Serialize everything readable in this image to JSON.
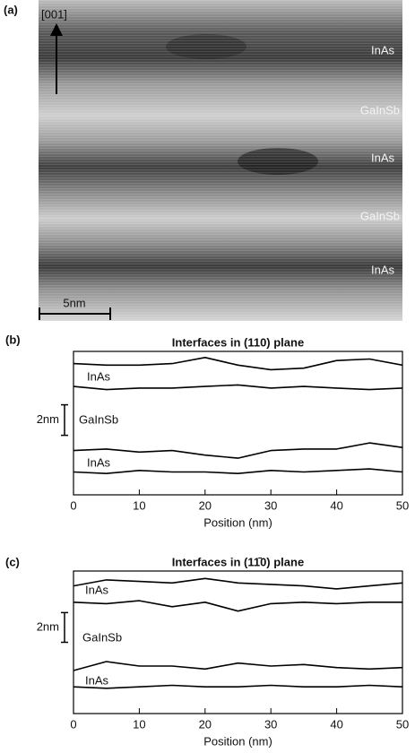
{
  "panel_a": {
    "label": "(a)",
    "direction": "[001]",
    "layers": [
      "InAs",
      "GaInSb",
      "InAs",
      "GaInSb",
      "InAs"
    ],
    "scale_bar": "5nm"
  },
  "chart_data": [
    {
      "type": "line",
      "panel_label": "(b)",
      "title": "Interfaces in (110) plane",
      "xlabel": "Position (nm)",
      "annotations": [
        "InAs",
        "GaInSb",
        "InAs"
      ],
      "scale_bar": {
        "value": 2,
        "label": "2nm"
      },
      "x": [
        0,
        5,
        10,
        15,
        20,
        25,
        30,
        35,
        40,
        45,
        50
      ],
      "series": [
        {
          "color": "#000000",
          "values": [
            8.6,
            8.5,
            8.5,
            8.6,
            9.0,
            8.5,
            8.2,
            8.3,
            8.8,
            8.9,
            8.5
          ]
        },
        {
          "color": "#000000",
          "values": [
            7.1,
            6.9,
            7.0,
            7.0,
            7.1,
            7.2,
            7.0,
            7.1,
            7.0,
            6.9,
            7.0
          ]
        },
        {
          "color": "#000000",
          "values": [
            2.9,
            3.0,
            2.8,
            2.9,
            2.6,
            2.4,
            2.9,
            3.0,
            3.0,
            3.4,
            3.1
          ]
        },
        {
          "color": "#000000",
          "values": [
            1.5,
            1.4,
            1.6,
            1.5,
            1.5,
            1.4,
            1.6,
            1.5,
            1.6,
            1.7,
            1.5
          ]
        }
      ],
      "xlim": [
        0,
        50
      ],
      "xticks": [
        0,
        10,
        20,
        30,
        40,
        50
      ],
      "ylim": [
        0,
        9.4
      ]
    },
    {
      "type": "line",
      "panel_label": "(c)",
      "title": "Interfaces in (11̄0) plane",
      "xlabel": "Position (nm)",
      "annotations": [
        "InAs",
        "GaInSb",
        "InAs"
      ],
      "scale_bar": {
        "value": 2,
        "label": "2nm"
      },
      "x": [
        0,
        5,
        10,
        15,
        20,
        25,
        30,
        35,
        40,
        45,
        50
      ],
      "series": [
        {
          "color": "#000000",
          "values": [
            8.6,
            9.0,
            8.9,
            8.8,
            9.1,
            8.8,
            8.7,
            8.6,
            8.4,
            8.6,
            8.8
          ]
        },
        {
          "color": "#000000",
          "values": [
            7.5,
            7.4,
            7.6,
            7.2,
            7.5,
            6.9,
            7.4,
            7.5,
            7.4,
            7.5,
            7.5
          ]
        },
        {
          "color": "#000000",
          "values": [
            2.9,
            3.5,
            3.2,
            3.2,
            3.0,
            3.4,
            3.2,
            3.3,
            3.1,
            3.0,
            3.1
          ]
        },
        {
          "color": "#000000",
          "values": [
            1.8,
            1.7,
            1.8,
            1.9,
            1.8,
            1.8,
            1.9,
            1.8,
            1.8,
            1.9,
            1.8
          ]
        }
      ],
      "xlim": [
        0,
        50
      ],
      "xticks": [
        0,
        10,
        20,
        30,
        40,
        50
      ],
      "ylim": [
        0,
        9.6
      ]
    }
  ]
}
